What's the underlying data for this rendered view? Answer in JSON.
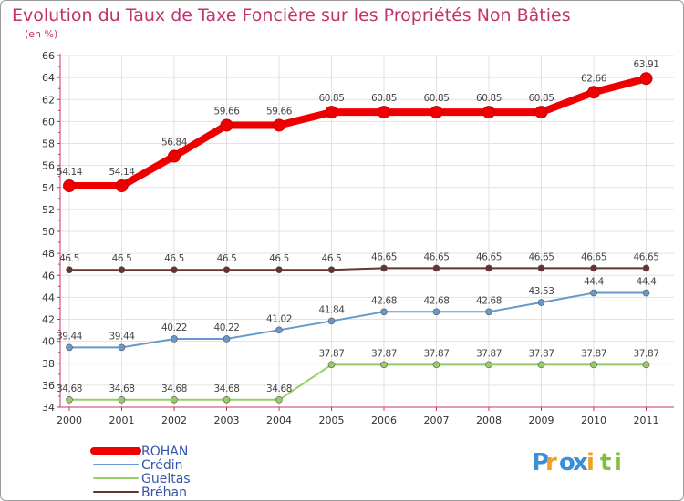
{
  "chart_data": {
    "type": "line",
    "title": "Evolution du Taux de Taxe Foncière sur les Propriétés Non Bâties",
    "subtitle": "(en %)",
    "x": [
      "2000",
      "2001",
      "2002",
      "2003",
      "2004",
      "2005",
      "2006",
      "2007",
      "2008",
      "2009",
      "2010",
      "2011"
    ],
    "ylim": [
      34,
      66
    ],
    "yticks": [
      "34",
      "36",
      "38",
      "40",
      "42",
      "44",
      "46",
      "48",
      "50",
      "52",
      "54",
      "56",
      "58",
      "60",
      "62",
      "64",
      "66"
    ],
    "series": [
      {
        "name": "ROHAN",
        "color": "#ee0000",
        "values": [
          54.14,
          54.14,
          56.84,
          59.66,
          59.66,
          60.85,
          60.85,
          60.85,
          60.85,
          60.85,
          62.66,
          63.91
        ],
        "labels": [
          "54.14",
          "54.14",
          "56.84",
          "59.66",
          "59.66",
          "60.85",
          "60.85",
          "60.85",
          "60.85",
          "60.85",
          "62.66",
          "63.91"
        ]
      },
      {
        "name": "Crédin",
        "color": "#6699cc",
        "values": [
          39.44,
          39.44,
          40.22,
          40.22,
          41.02,
          41.84,
          42.68,
          42.68,
          42.68,
          43.53,
          44.4,
          44.4
        ],
        "labels": [
          "39.44",
          "39.44",
          "40.22",
          "40.22",
          "41.02",
          "41.84",
          "42.68",
          "42.68",
          "42.68",
          "43.53",
          "44.4",
          "44.4"
        ]
      },
      {
        "name": "Gueltas",
        "color": "#99cc66",
        "values": [
          34.68,
          34.68,
          34.68,
          34.68,
          34.68,
          37.87,
          37.87,
          37.87,
          37.87,
          37.87,
          37.87,
          37.87
        ],
        "labels": [
          "34.68",
          "34.68",
          "34.68",
          "34.68",
          "34.68",
          "37.87",
          "37.87",
          "37.87",
          "37.87",
          "37.87",
          "37.87",
          "37.87"
        ]
      },
      {
        "name": "Bréhan",
        "color": "#663333",
        "values": [
          46.5,
          46.5,
          46.5,
          46.5,
          46.5,
          46.5,
          46.65,
          46.65,
          46.65,
          46.65,
          46.65,
          46.65
        ],
        "labels": [
          "46.5",
          "46.5",
          "46.5",
          "46.5",
          "46.5",
          "46.5",
          "46.65",
          "46.65",
          "46.65",
          "46.65",
          "46.65",
          "46.65"
        ]
      }
    ],
    "legend_position": "bottom-left"
  },
  "logo": {
    "letters": [
      "P",
      "r",
      "o",
      "x",
      "i",
      "t",
      "i"
    ],
    "colors": [
      "#3a8fd6",
      "#f0a020",
      "#3a8fd6",
      "#3a8fd6",
      "#f0a020",
      "#80c040",
      "#80c040"
    ]
  }
}
